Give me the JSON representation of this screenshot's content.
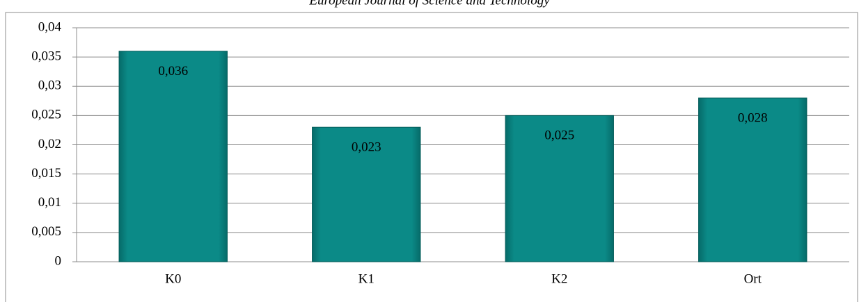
{
  "header": {
    "title": "European Journal of Science and Technology"
  },
  "chart_data": {
    "type": "bar",
    "categories": [
      "K0",
      "K1",
      "K2",
      "Ort"
    ],
    "values": [
      0.036,
      0.023,
      0.025,
      0.028
    ],
    "value_labels": [
      "0,036",
      "0,023",
      "0,025",
      "0,028"
    ],
    "color": "#0b8a87",
    "ylim": [
      0,
      0.04
    ],
    "yticks": [
      0,
      {
        "value": 0.005,
        "label": "0,005"
      },
      {
        "value": 0.01,
        "label": "0,01"
      },
      {
        "value": 0.015,
        "label": "0,015"
      },
      {
        "value": 0.02,
        "label": "0,02"
      },
      {
        "value": 0.025,
        "label": "0,025"
      },
      {
        "value": 0.03,
        "label": "0,03"
      },
      {
        "value": 0.035,
        "label": "0,035"
      },
      {
        "value": 0.04,
        "label": "0,04"
      }
    ],
    "grid": true
  }
}
